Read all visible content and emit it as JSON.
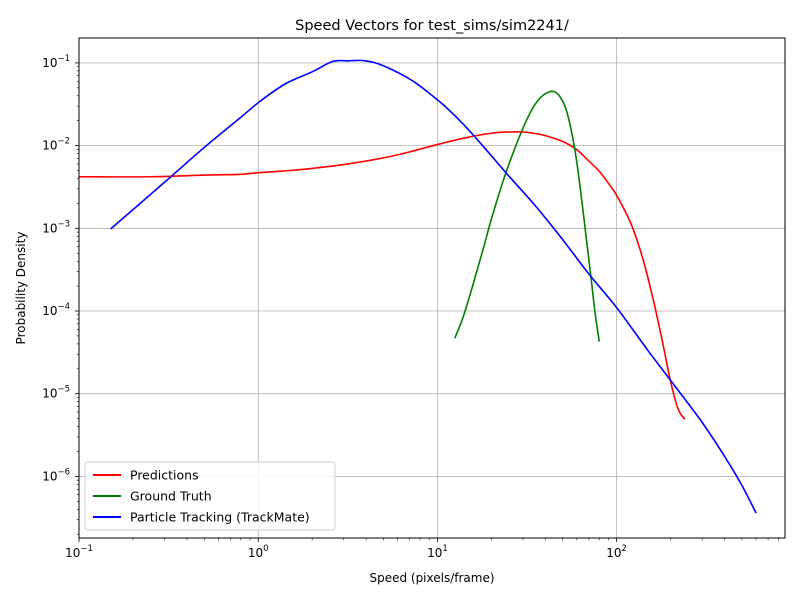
{
  "chart_data": {
    "type": "line",
    "title": "Speed Vectors for test_sims/sim2241/",
    "xlabel": "Speed (pixels/frame)",
    "ylabel": "Probability Density",
    "xscale": "log",
    "yscale": "log",
    "xlim": [
      0.1,
      870
    ],
    "ylim": [
      1.8e-07,
      0.2
    ],
    "grid": true,
    "legend_position": "lower-left",
    "x_tick_labels": [
      {
        "base": "10",
        "exp": "−1",
        "value": 0.1
      },
      {
        "base": "10",
        "exp": "0",
        "value": 1
      },
      {
        "base": "10",
        "exp": "1",
        "value": 10
      },
      {
        "base": "10",
        "exp": "2",
        "value": 100
      }
    ],
    "y_tick_labels": [
      {
        "base": "10",
        "exp": "−6",
        "value": 1e-06
      },
      {
        "base": "10",
        "exp": "−5",
        "value": 1e-05
      },
      {
        "base": "10",
        "exp": "−4",
        "value": 0.0001
      },
      {
        "base": "10",
        "exp": "−3",
        "value": 0.001
      },
      {
        "base": "10",
        "exp": "−2",
        "value": 0.01
      },
      {
        "base": "10",
        "exp": "−1",
        "value": 0.1
      }
    ],
    "series": [
      {
        "name": "Predictions",
        "color": "#ff0000",
        "x": [
          0.1,
          0.25,
          0.5,
          0.8,
          1.0,
          1.5,
          2.0,
          3.0,
          5.0,
          7.0,
          10.0,
          14.0,
          20.0,
          25.0,
          30.0,
          35.0,
          40.0,
          50.0,
          60.0,
          70.0,
          80.0,
          90.0,
          100.0,
          120.0,
          140.0,
          160.0,
          180.0,
          200.0,
          220.0,
          240.0
        ],
        "y": [
          0.0042,
          0.0042,
          0.0044,
          0.0045,
          0.0047,
          0.005,
          0.0053,
          0.0059,
          0.0071,
          0.0084,
          0.0103,
          0.0123,
          0.0141,
          0.0146,
          0.0146,
          0.014,
          0.0132,
          0.0112,
          0.0089,
          0.0065,
          0.0049,
          0.0035,
          0.0025,
          0.00115,
          0.00043,
          0.000138,
          4.31e-05,
          1.41e-05,
          6.6e-06,
          4.9e-06
        ]
      },
      {
        "name": "Ground Truth",
        "color": "#008000",
        "x": [
          12.5,
          14.0,
          16.0,
          18.0,
          20.0,
          23.0,
          26.0,
          30.0,
          34.0,
          38.0,
          42.0,
          45.0,
          48.0,
          52.0,
          56.0,
          60.0,
          64.0,
          68.0,
          72.0,
          76.0,
          80.0
        ],
        "y": [
          4.68e-05,
          8.8e-05,
          0.000229,
          0.000562,
          0.00129,
          0.00347,
          0.00741,
          0.0162,
          0.0283,
          0.0389,
          0.0447,
          0.0447,
          0.0398,
          0.0282,
          0.0148,
          0.0062,
          0.0021,
          0.00071,
          0.00025,
          9.1e-05,
          4.27e-05
        ]
      },
      {
        "name": "Particle Tracking (TrackMate)",
        "color": "#0000ff",
        "x": [
          0.15,
          0.3,
          0.5,
          0.8,
          1.0,
          1.4,
          2.0,
          2.6,
          3.2,
          3.8,
          4.5,
          5.2,
          6.2,
          7.5,
          9.0,
          11.0,
          14.0,
          18.0,
          25.0,
          35.0,
          50.0,
          70.0,
          100.0,
          150.0,
          200.0,
          300.0,
          400.0,
          500.0,
          600.0
        ],
        "y": [
          0.00098,
          0.0036,
          0.0095,
          0.022,
          0.033,
          0.055,
          0.078,
          0.104,
          0.106,
          0.107,
          0.1,
          0.089,
          0.074,
          0.058,
          0.043,
          0.03,
          0.018,
          0.0098,
          0.0043,
          0.0019,
          0.00073,
          0.00028,
          0.00011,
          3.3e-05,
          1.45e-05,
          4.5e-06,
          1.75e-06,
          7.8e-07,
          3.6e-07
        ]
      }
    ]
  }
}
